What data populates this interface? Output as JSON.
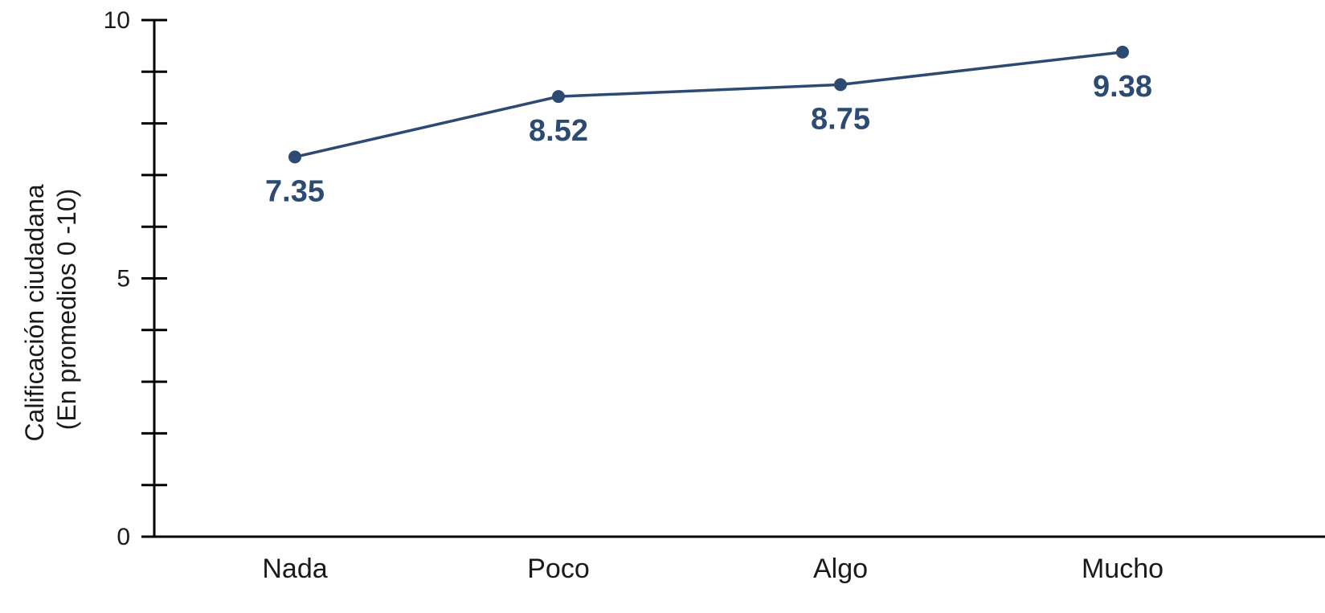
{
  "chart_data": {
    "type": "line",
    "categories": [
      "Nada",
      "Poco",
      "Algo",
      "Mucho"
    ],
    "series": [
      {
        "values": [
          7.35,
          8.52,
          8.75,
          9.38
        ]
      }
    ],
    "data_labels": [
      "7.35",
      "8.52",
      "8.75",
      "9.38"
    ],
    "ylabel": [
      "Calificación ciudadana",
      "(En promedios 0 -10)"
    ],
    "ylim": [
      0,
      10
    ],
    "y_tick_labels": [
      {
        "value": 0,
        "label": "0"
      },
      {
        "value": 5,
        "label": "5"
      },
      {
        "value": 10,
        "label": "10"
      }
    ],
    "y_minor_step": 1,
    "grid": false,
    "legend": "none",
    "color": "#2c4a72"
  }
}
